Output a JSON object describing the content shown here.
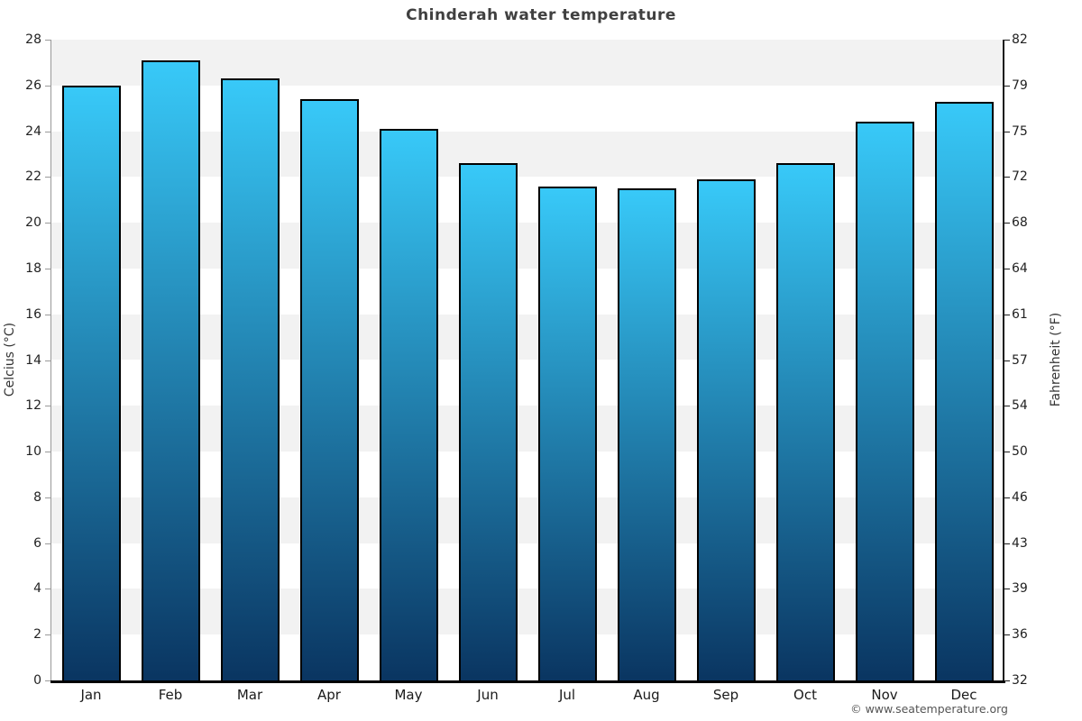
{
  "title": "Chinderah water temperature",
  "footer": {
    "copyright": "© www.seatemperature.org"
  },
  "y_axis_left": {
    "label": "Celcius (°C)",
    "ticks": [
      "28",
      "26",
      "24",
      "22",
      "20",
      "18",
      "16",
      "14",
      "12",
      "10",
      "8",
      "6",
      "4",
      "2",
      "0"
    ]
  },
  "y_axis_right": {
    "label": "Fahrenheit (°F)",
    "ticks": [
      "82",
      "79",
      "75",
      "72",
      "68",
      "64",
      "61",
      "57",
      "54",
      "50",
      "46",
      "43",
      "39",
      "36",
      "32"
    ]
  },
  "chart_data": {
    "type": "bar",
    "title": "Chinderah water temperature",
    "categories": [
      "Jan",
      "Feb",
      "Mar",
      "Apr",
      "May",
      "Jun",
      "Jul",
      "Aug",
      "Sep",
      "Oct",
      "Nov",
      "Dec"
    ],
    "values": [
      26.0,
      27.1,
      26.3,
      25.4,
      24.1,
      22.6,
      21.6,
      21.5,
      21.9,
      22.6,
      24.4,
      25.3
    ],
    "ylabel": "Celcius (°C)",
    "y2label": "Fahrenheit (°F)",
    "ylim": [
      0,
      28
    ],
    "y2lim": [
      32,
      82.4
    ],
    "ytick_step": 2,
    "legend": false,
    "grid": "alternating-bands"
  },
  "colors": {
    "bar_gradient_top": "#38c9f8",
    "bar_gradient_bottom": "#0a3561",
    "bar_border": "#000000",
    "band_light": "#f2f2f2",
    "band_white": "#ffffff",
    "left_axis_line": "#999999",
    "right_axis_line": "#1a1a1a",
    "bottom_axis_line": "#000000",
    "title": "#404040",
    "tick_label": "#222222",
    "axis_title": "#333333",
    "footer": "#555555"
  }
}
